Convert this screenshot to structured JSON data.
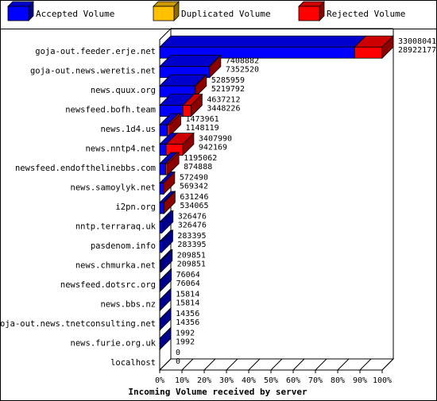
{
  "chart_data": {
    "type": "bar",
    "orientation": "horizontal",
    "stacked": true,
    "three_d": true,
    "xlabel": "Incoming Volume received by server",
    "x_ticks": [
      "0%",
      "10%",
      "20%",
      "30%",
      "40%",
      "50%",
      "60%",
      "70%",
      "80%",
      "90%",
      "100%"
    ],
    "xlim": [
      0,
      100
    ],
    "legend_position": "top",
    "series": [
      {
        "name": "Accepted Volume",
        "color": "#0000ff",
        "key": "accepted"
      },
      {
        "name": "Duplicated Volume",
        "color": "#ffc000",
        "key": "duplicated"
      },
      {
        "name": "Rejected Volume",
        "color": "#ff0000",
        "key": "rejected"
      }
    ],
    "rows": [
      {
        "server": "goja-out.feeder.erje.net",
        "total": 33008041,
        "accepted": 28922177,
        "duplicated": 0,
        "rejected": 4085864,
        "total_label": "33008041",
        "accepted_label": "28922177"
      },
      {
        "server": "goja-out.news.weretis.net",
        "total": 7408882,
        "accepted": 7352520,
        "duplicated": 0,
        "rejected": 56362,
        "total_label": "7408882",
        "accepted_label": "7352520"
      },
      {
        "server": "news.quux.org",
        "total": 5285959,
        "accepted": 5219792,
        "duplicated": 0,
        "rejected": 66167,
        "total_label": "5285959",
        "accepted_label": "5219792"
      },
      {
        "server": "newsfeed.bofh.team",
        "total": 4637212,
        "accepted": 3448226,
        "duplicated": 0,
        "rejected": 1188986,
        "total_label": "4637212",
        "accepted_label": "3448226"
      },
      {
        "server": "news.1d4.us",
        "total": 1473961,
        "accepted": 1148119,
        "duplicated": 0,
        "rejected": 325842,
        "total_label": "1473961",
        "accepted_label": "1148119"
      },
      {
        "server": "news.nntp4.net",
        "total": 3407990,
        "accepted": 942169,
        "duplicated": 0,
        "rejected": 2465821,
        "total_label": "3407990",
        "accepted_label": "942169"
      },
      {
        "server": "newsfeed.endofthelinebbs.com",
        "total": 1195062,
        "accepted": 874888,
        "duplicated": 0,
        "rejected": 320174,
        "total_label": "1195062",
        "accepted_label": "874888"
      },
      {
        "server": "news.samoylyk.net",
        "total": 572490,
        "accepted": 569342,
        "duplicated": 0,
        "rejected": 3148,
        "total_label": "572490",
        "accepted_label": "569342"
      },
      {
        "server": "i2pn.org",
        "total": 631246,
        "accepted": 534065,
        "duplicated": 0,
        "rejected": 97181,
        "total_label": "631246",
        "accepted_label": "534065"
      },
      {
        "server": "nntp.terraraq.uk",
        "total": 326476,
        "accepted": 326476,
        "duplicated": 0,
        "rejected": 0,
        "total_label": "326476",
        "accepted_label": "326476"
      },
      {
        "server": "pasdenom.info",
        "total": 283395,
        "accepted": 283395,
        "duplicated": 0,
        "rejected": 0,
        "total_label": "283395",
        "accepted_label": "283395"
      },
      {
        "server": "news.chmurka.net",
        "total": 209851,
        "accepted": 209851,
        "duplicated": 0,
        "rejected": 0,
        "total_label": "209851",
        "accepted_label": "209851"
      },
      {
        "server": "newsfeed.dotsrc.org",
        "total": 76064,
        "accepted": 76064,
        "duplicated": 0,
        "rejected": 0,
        "total_label": "76064",
        "accepted_label": "76064"
      },
      {
        "server": "news.bbs.nz",
        "total": 15814,
        "accepted": 15814,
        "duplicated": 0,
        "rejected": 0,
        "total_label": "15814",
        "accepted_label": "15814"
      },
      {
        "server": "goja-out.news.tnetconsulting.net",
        "total": 14356,
        "accepted": 14356,
        "duplicated": 0,
        "rejected": 0,
        "total_label": "14356",
        "accepted_label": "14356"
      },
      {
        "server": "news.furie.org.uk",
        "total": 1992,
        "accepted": 1992,
        "duplicated": 0,
        "rejected": 0,
        "total_label": "1992",
        "accepted_label": "1992"
      },
      {
        "server": "localhost",
        "total": 0,
        "accepted": 0,
        "duplicated": 0,
        "rejected": 0,
        "total_label": "0",
        "accepted_label": "0"
      }
    ]
  }
}
